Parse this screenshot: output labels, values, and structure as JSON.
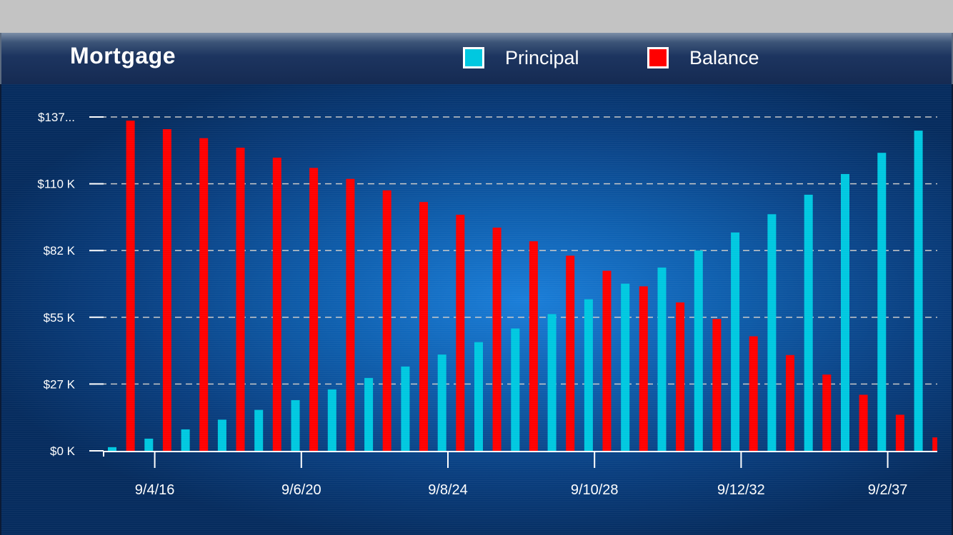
{
  "colors": {
    "principal": "#00c8e0",
    "balance": "#ff0000",
    "grid": "#c8c8c8",
    "axis": "#ffffff"
  },
  "legend": {
    "principal_label": "Principal",
    "balance_label": "Balance"
  },
  "chart_data": {
    "type": "bar",
    "title": "Mortgage",
    "ylim": [
      0,
      137
    ],
    "y_tick_values": [
      0,
      27.4,
      54.8,
      82.2,
      109.6,
      137
    ],
    "y_tick_labels": [
      "$0 K",
      "$27 K",
      "$55 K",
      "$82 K",
      "$110 K",
      "$137..."
    ],
    "x_tick_labels": [
      "9/4/16",
      "9/6/20",
      "9/8/24",
      "9/10/28",
      "9/12/32",
      "9/2/37"
    ],
    "x_tick_after_group": [
      1,
      5,
      9,
      13,
      17,
      21
    ],
    "grid": true,
    "legend_position": "top",
    "series": [
      {
        "name": "Principal",
        "values": [
          1.5,
          5.0,
          8.8,
          12.8,
          16.8,
          20.8,
          25.2,
          29.9,
          34.6,
          39.5,
          44.6,
          50.2,
          56.1,
          62.2,
          68.6,
          75.2,
          82.2,
          89.6,
          97.1,
          105.1,
          113.6,
          122.3,
          131.4
        ]
      },
      {
        "name": "Balance",
        "values": [
          135.5,
          132.0,
          128.3,
          124.4,
          120.3,
          116.1,
          111.6,
          106.9,
          102.1,
          96.9,
          91.6,
          86.0,
          80.1,
          73.9,
          67.5,
          60.9,
          54.1,
          47.0,
          39.3,
          31.3,
          23.0,
          14.8,
          5.5
        ]
      }
    ]
  }
}
